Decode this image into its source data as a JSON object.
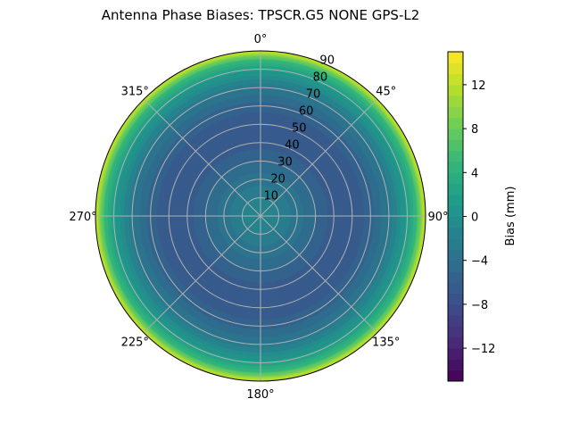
{
  "chart_data": {
    "type": "heatmap",
    "projection": "polar",
    "title": "Antenna Phase Biases: TPSCR.G5        NONE GPS-L2",
    "azimuth_ticks": [
      "0°",
      "45°",
      "90°",
      "135°",
      "180°",
      "225°",
      "270°",
      "315°"
    ],
    "azimuth_values": [
      0,
      45,
      90,
      135,
      180,
      225,
      270,
      315
    ],
    "radial_ticks": [
      "10",
      "20",
      "30",
      "40",
      "50",
      "60",
      "70",
      "80",
      "90"
    ],
    "radial_values": [
      10,
      20,
      30,
      40,
      50,
      60,
      70,
      80,
      90
    ],
    "radial_range": [
      0,
      90
    ],
    "zenith_profile": {
      "zenith_deg": [
        0,
        10,
        20,
        30,
        40,
        50,
        60,
        70,
        80,
        85,
        90
      ],
      "bias_mm": [
        -1,
        -2,
        -3.5,
        -5,
        -6.5,
        -7,
        -5.5,
        -3,
        1.5,
        5,
        13
      ]
    },
    "colorbar": {
      "label": "Bias (mm)",
      "range": [
        -15,
        15
      ],
      "level_step": 1,
      "colormap": "viridis",
      "ticks": [
        "−12",
        "−8",
        "−4",
        "0",
        "4",
        "8",
        "12"
      ],
      "tick_values": [
        -12,
        -8,
        -4,
        0,
        4,
        8,
        12
      ]
    },
    "grid": true
  }
}
